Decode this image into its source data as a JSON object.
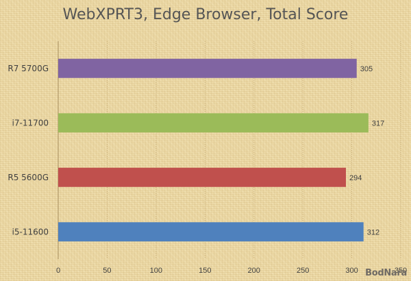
{
  "chart_data": {
    "type": "bar",
    "orientation": "horizontal",
    "title": "WebXPRT3, Edge Browser, Total Score",
    "categories": [
      "R7 5700G",
      "i7-11700",
      "R5 5600G",
      "i5-11600"
    ],
    "values": [
      305,
      317,
      294,
      312
    ],
    "colors": [
      "#8064a2",
      "#9bbb59",
      "#c0504d",
      "#4f81bd"
    ],
    "xlim": [
      0,
      350
    ],
    "xticks": [
      0,
      50,
      100,
      150,
      200,
      250,
      300,
      350
    ],
    "grid": true,
    "legend": "none"
  },
  "watermark": "BodNara"
}
